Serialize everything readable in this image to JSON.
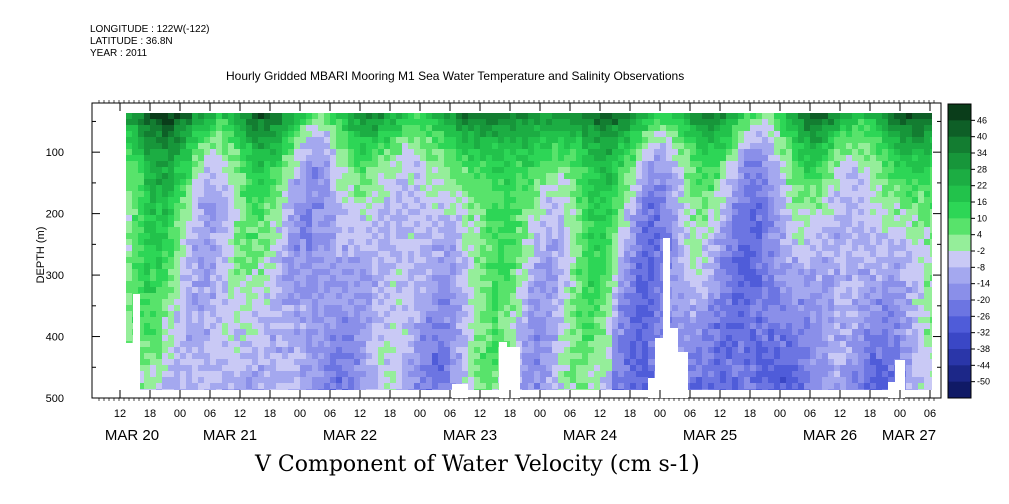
{
  "header": {
    "longitude": "LONGITUDE : 122W(-122)",
    "latitude": "LATITUDE : 36.8N",
    "year": "YEAR : 2011"
  },
  "chart_data": {
    "type": "heatmap",
    "title": "Hourly Gridded MBARI Mooring M1 Sea Water Temperature and Salinity Observations",
    "xlabel": "",
    "ylabel": "DEPTH (m)",
    "colorbar_label": "V Component of Water Velocity (cm s-1)",
    "y_ticks": [
      "100",
      "200",
      "300",
      "400",
      "500"
    ],
    "ylim": [
      500,
      20
    ],
    "hour_labels": [
      "12",
      "18",
      "00",
      "06",
      "12",
      "18",
      "00",
      "06",
      "12",
      "18",
      "00",
      "06",
      "12",
      "18",
      "00",
      "06",
      "12",
      "18",
      "00",
      "06",
      "12",
      "18",
      "00",
      "06",
      "12",
      "18",
      "00",
      "06"
    ],
    "date_labels": [
      "MAR 20",
      "MAR 21",
      "MAR 22",
      "MAR 23",
      "MAR 24",
      "MAR 25",
      "MAR 26",
      "MAR 27"
    ],
    "colorbar_levels": [
      "46",
      "40",
      "34",
      "28",
      "22",
      "16",
      "10",
      "4",
      "-2",
      "-8",
      "-14",
      "-20",
      "-26",
      "-32",
      "-38",
      "-44",
      "-50"
    ],
    "colorbar_colors": [
      "#0a3d1a",
      "#0e5f27",
      "#137d31",
      "#17963a",
      "#1cad43",
      "#22c24b",
      "#2dd656",
      "#58e36b",
      "#95ee9a",
      "#c9c9f5",
      "#a4a8ef",
      "#8a8fe9",
      "#6c75e2",
      "#4f5cd9",
      "#3a47c6",
      "#2a36a9",
      "#1c2788",
      "#101a66"
    ]
  }
}
